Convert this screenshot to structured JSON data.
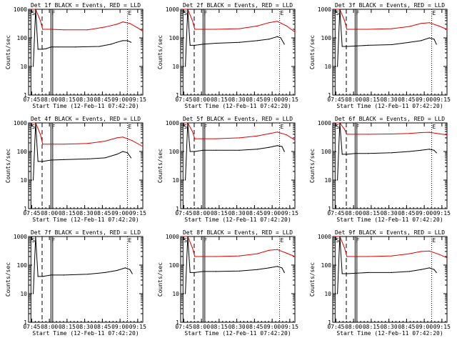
{
  "chart_data": {
    "type": "line",
    "ylabel": "Counts/sec",
    "xlabel": "Start Time (12-Feb-11 07:42:20)",
    "x_ticks": [
      "07:45",
      "08:00",
      "08:15",
      "08:30",
      "08:45",
      "09:00",
      "09:15"
    ],
    "y_ticks": [
      {
        "value": 1000,
        "label": "1000"
      },
      {
        "value": 100,
        "label": "100"
      },
      {
        "value": 10,
        "label": "10"
      },
      {
        "value": 1,
        "label": "1"
      }
    ],
    "x_range_minutes": [
      0,
      97
    ],
    "ylim_log": [
      1,
      1000
    ],
    "markers": [
      {
        "label": "S",
        "time_min": 2.0,
        "style": "solid"
      },
      {
        "label": "",
        "time_min": 11.5,
        "style": "dashed"
      },
      {
        "label": "F",
        "time_min": 19.0,
        "style": "solid"
      },
      {
        "label": "",
        "time_min": 20.5,
        "style": "solid"
      },
      {
        "label": "E",
        "time_min": 84.0,
        "style": "dotted"
      }
    ],
    "series_colors": {
      "events": "#000000",
      "lld": "#e00000"
    },
    "panels": [
      {
        "title": "Det 1f BLACK = Events, RED = LLD",
        "has_lld": true,
        "events": [
          [
            4,
            10
          ],
          [
            6,
            1000
          ],
          [
            8,
            40
          ],
          [
            12,
            40
          ],
          [
            15,
            42
          ],
          [
            19,
            48
          ],
          [
            25,
            48
          ],
          [
            40,
            48
          ],
          [
            60,
            50
          ],
          [
            70,
            60
          ],
          [
            75,
            70
          ],
          [
            80,
            80
          ],
          [
            84,
            80
          ],
          [
            87,
            70
          ]
        ],
        "lld": [
          [
            2,
            1000
          ],
          [
            6,
            1000
          ],
          [
            10,
            400
          ],
          [
            12,
            200
          ],
          [
            19,
            200
          ],
          [
            30,
            190
          ],
          [
            50,
            190
          ],
          [
            65,
            240
          ],
          [
            75,
            300
          ],
          [
            80,
            360
          ],
          [
            86,
            320
          ],
          [
            93,
            220
          ],
          [
            97,
            170
          ]
        ]
      },
      {
        "title": "Det 2f BLACK = Events, RED = LLD",
        "has_lld": true,
        "events": [
          [
            4,
            10
          ],
          [
            6,
            1000
          ],
          [
            8,
            55
          ],
          [
            12,
            55
          ],
          [
            19,
            60
          ],
          [
            30,
            65
          ],
          [
            50,
            70
          ],
          [
            65,
            80
          ],
          [
            75,
            90
          ],
          [
            82,
            110
          ],
          [
            85,
            100
          ],
          [
            88,
            60
          ]
        ],
        "lld": [
          [
            2,
            1000
          ],
          [
            6,
            1000
          ],
          [
            10,
            400
          ],
          [
            12,
            200
          ],
          [
            19,
            200
          ],
          [
            30,
            200
          ],
          [
            50,
            210
          ],
          [
            65,
            260
          ],
          [
            75,
            340
          ],
          [
            82,
            380
          ],
          [
            90,
            260
          ],
          [
            97,
            160
          ]
        ]
      },
      {
        "title": "Det 3f BLACK = Events, RED = LLD",
        "has_lld": true,
        "events": [
          [
            4,
            10
          ],
          [
            6,
            1000
          ],
          [
            8,
            50
          ],
          [
            12,
            50
          ],
          [
            19,
            52
          ],
          [
            30,
            55
          ],
          [
            50,
            58
          ],
          [
            65,
            70
          ],
          [
            75,
            80
          ],
          [
            82,
            100
          ],
          [
            86,
            90
          ],
          [
            88,
            60
          ]
        ],
        "lld": [
          [
            2,
            1000
          ],
          [
            6,
            1000
          ],
          [
            10,
            400
          ],
          [
            12,
            200
          ],
          [
            19,
            200
          ],
          [
            30,
            200
          ],
          [
            50,
            210
          ],
          [
            65,
            250
          ],
          [
            75,
            320
          ],
          [
            82,
            340
          ],
          [
            90,
            260
          ],
          [
            97,
            200
          ]
        ]
      },
      {
        "title": "Det 4f BLACK = Events, RED = LLD",
        "has_lld": true,
        "events": [
          [
            4,
            10
          ],
          [
            6,
            1000
          ],
          [
            8,
            45
          ],
          [
            12,
            45
          ],
          [
            19,
            50
          ],
          [
            30,
            52
          ],
          [
            50,
            55
          ],
          [
            65,
            60
          ],
          [
            75,
            80
          ],
          [
            80,
            100
          ],
          [
            84,
            90
          ],
          [
            87,
            60
          ]
        ],
        "lld": [
          [
            2,
            1000
          ],
          [
            6,
            1000
          ],
          [
            10,
            400
          ],
          [
            12,
            180
          ],
          [
            19,
            180
          ],
          [
            30,
            180
          ],
          [
            50,
            190
          ],
          [
            65,
            230
          ],
          [
            75,
            300
          ],
          [
            80,
            320
          ],
          [
            88,
            240
          ],
          [
            97,
            150
          ]
        ]
      },
      {
        "title": "Det 5f BLACK = Events, RED = LLD",
        "has_lld": true,
        "events": [
          [
            4,
            10
          ],
          [
            6,
            1000
          ],
          [
            8,
            100
          ],
          [
            12,
            100
          ],
          [
            19,
            110
          ],
          [
            30,
            110
          ],
          [
            50,
            110
          ],
          [
            65,
            120
          ],
          [
            75,
            140
          ],
          [
            82,
            160
          ],
          [
            86,
            150
          ],
          [
            88,
            100
          ]
        ],
        "lld": [
          [
            2,
            1000
          ],
          [
            6,
            1000
          ],
          [
            10,
            500
          ],
          [
            12,
            280
          ],
          [
            19,
            280
          ],
          [
            30,
            280
          ],
          [
            50,
            300
          ],
          [
            65,
            350
          ],
          [
            75,
            420
          ],
          [
            82,
            480
          ],
          [
            90,
            380
          ],
          [
            97,
            250
          ]
        ]
      },
      {
        "title": "Det 6f BLACK = Events, RED = LLD",
        "has_lld": true,
        "events": [
          [
            4,
            10
          ],
          [
            6,
            1000
          ],
          [
            8,
            80
          ],
          [
            12,
            80
          ],
          [
            19,
            85
          ],
          [
            30,
            85
          ],
          [
            50,
            90
          ],
          [
            65,
            100
          ],
          [
            75,
            110
          ],
          [
            82,
            120
          ],
          [
            86,
            110
          ],
          [
            88,
            90
          ]
        ],
        "lld": [
          [
            2,
            1000
          ],
          [
            6,
            1000
          ],
          [
            10,
            600
          ],
          [
            12,
            400
          ],
          [
            19,
            400
          ],
          [
            30,
            400
          ],
          [
            50,
            410
          ],
          [
            65,
            430
          ],
          [
            75,
            460
          ],
          [
            82,
            470
          ],
          [
            90,
            420
          ],
          [
            97,
            380
          ]
        ]
      },
      {
        "title": "Det 7f BLACK = Events, RED = LLD",
        "has_lld": false,
        "events": [
          [
            4,
            10
          ],
          [
            6,
            1000
          ],
          [
            8,
            40
          ],
          [
            12,
            40
          ],
          [
            19,
            45
          ],
          [
            30,
            45
          ],
          [
            50,
            48
          ],
          [
            65,
            55
          ],
          [
            75,
            65
          ],
          [
            82,
            80
          ],
          [
            86,
            70
          ],
          [
            88,
            50
          ]
        ],
        "lld": []
      },
      {
        "title": "Det 8f BLACK = Events, RED = LLD",
        "has_lld": true,
        "events": [
          [
            4,
            10
          ],
          [
            6,
            1000
          ],
          [
            8,
            55
          ],
          [
            12,
            55
          ],
          [
            19,
            60
          ],
          [
            30,
            60
          ],
          [
            50,
            62
          ],
          [
            65,
            70
          ],
          [
            75,
            80
          ],
          [
            82,
            90
          ],
          [
            86,
            80
          ],
          [
            88,
            55
          ]
        ],
        "lld": [
          [
            2,
            1000
          ],
          [
            6,
            1000
          ],
          [
            10,
            400
          ],
          [
            12,
            200
          ],
          [
            19,
            200
          ],
          [
            30,
            200
          ],
          [
            50,
            210
          ],
          [
            65,
            250
          ],
          [
            75,
            330
          ],
          [
            82,
            350
          ],
          [
            90,
            260
          ],
          [
            97,
            200
          ]
        ]
      },
      {
        "title": "Det 9f BLACK = Events, RED = LLD",
        "has_lld": true,
        "events": [
          [
            4,
            10
          ],
          [
            6,
            1000
          ],
          [
            8,
            50
          ],
          [
            12,
            50
          ],
          [
            19,
            52
          ],
          [
            30,
            55
          ],
          [
            50,
            55
          ],
          [
            65,
            60
          ],
          [
            75,
            70
          ],
          [
            82,
            80
          ],
          [
            86,
            70
          ],
          [
            88,
            55
          ]
        ],
        "lld": [
          [
            2,
            1000
          ],
          [
            6,
            1000
          ],
          [
            10,
            400
          ],
          [
            12,
            200
          ],
          [
            19,
            200
          ],
          [
            30,
            200
          ],
          [
            50,
            210
          ],
          [
            65,
            250
          ],
          [
            75,
            300
          ],
          [
            82,
            310
          ],
          [
            90,
            240
          ],
          [
            97,
            180
          ]
        ]
      }
    ]
  }
}
